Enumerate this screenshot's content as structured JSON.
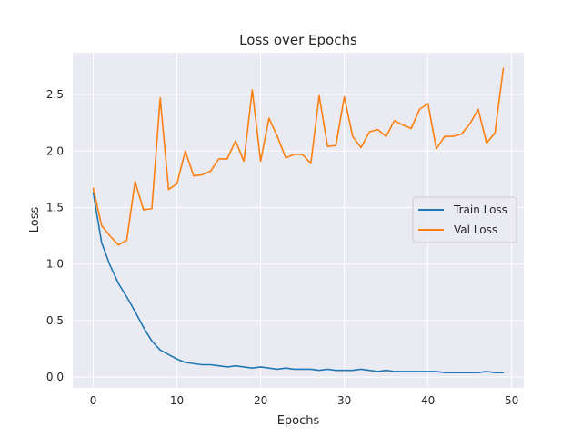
{
  "chart_data": {
    "type": "line",
    "title": "Loss over Epochs",
    "xlabel": "Epochs",
    "ylabel": "Loss",
    "xlim": [
      -2.45,
      51.45
    ],
    "ylim": [
      -0.095,
      2.87
    ],
    "xticks": [
      0,
      10,
      20,
      30,
      40,
      50
    ],
    "yticks": [
      0.0,
      0.5,
      1.0,
      1.5,
      2.0,
      2.5
    ],
    "ytick_labels": [
      "0.0",
      "0.5",
      "1.0",
      "1.5",
      "2.0",
      "2.5"
    ],
    "grid": true,
    "legend_position": "center-right",
    "x": [
      0,
      1,
      2,
      3,
      4,
      5,
      6,
      7,
      8,
      9,
      10,
      11,
      12,
      13,
      14,
      15,
      16,
      17,
      18,
      19,
      20,
      21,
      22,
      23,
      24,
      25,
      26,
      27,
      28,
      29,
      30,
      31,
      32,
      33,
      34,
      35,
      36,
      37,
      38,
      39,
      40,
      41,
      42,
      43,
      44,
      45,
      46,
      47,
      48,
      49
    ],
    "series": [
      {
        "name": "Train Loss",
        "color": "#1f77b4",
        "values": [
          1.63,
          1.19,
          0.99,
          0.83,
          0.71,
          0.58,
          0.44,
          0.32,
          0.24,
          0.2,
          0.16,
          0.13,
          0.12,
          0.11,
          0.11,
          0.1,
          0.09,
          0.1,
          0.09,
          0.08,
          0.09,
          0.08,
          0.07,
          0.08,
          0.07,
          0.07,
          0.07,
          0.06,
          0.07,
          0.06,
          0.06,
          0.06,
          0.07,
          0.06,
          0.05,
          0.06,
          0.05,
          0.05,
          0.05,
          0.05,
          0.05,
          0.05,
          0.04,
          0.04,
          0.04,
          0.04,
          0.04,
          0.05,
          0.04,
          0.04
        ]
      },
      {
        "name": "Val Loss",
        "color": "#ff7f0e",
        "values": [
          1.67,
          1.34,
          1.25,
          1.17,
          1.21,
          1.73,
          1.48,
          1.49,
          2.47,
          1.66,
          1.71,
          2.0,
          1.78,
          1.79,
          1.82,
          1.93,
          1.93,
          2.09,
          1.91,
          2.54,
          1.91,
          2.29,
          2.13,
          1.94,
          1.97,
          1.97,
          1.89,
          2.49,
          2.04,
          2.05,
          2.48,
          2.13,
          2.03,
          2.17,
          2.19,
          2.13,
          2.27,
          2.23,
          2.2,
          2.37,
          2.42,
          2.02,
          2.13,
          2.13,
          2.15,
          2.24,
          2.37,
          2.07,
          2.16,
          2.73
        ]
      }
    ]
  }
}
